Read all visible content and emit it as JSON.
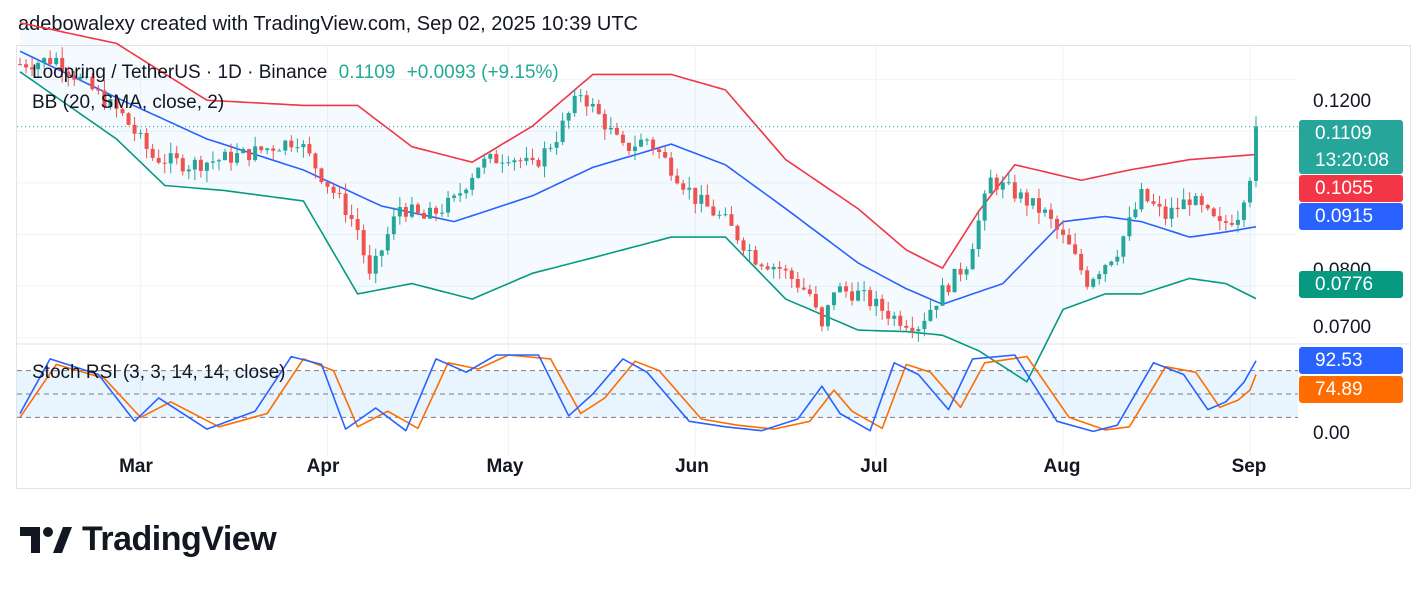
{
  "header": {
    "caption": "adebowalexy created with TradingView.com, Sep 02, 2025 10:39 UTC"
  },
  "legend": {
    "symbol": "Loopring / TetherUS · 1D · Binance",
    "last": "0.1109",
    "change": "+0.0093 (+9.15%)",
    "bb": "BB (20, SMA, close, 2)",
    "stoch": "Stoch RSI (3, 3, 14, 14, close)"
  },
  "price_axis": {
    "ticks": [
      "0.1200",
      "0.0800",
      "0.0700"
    ],
    "badges": {
      "last": "0.1109",
      "countdown": "13:20:08",
      "upper": "0.1055",
      "basis": "0.0915",
      "lower": "0.0776"
    }
  },
  "stoch_axis": {
    "ticks": [
      "0.00"
    ],
    "badges": {
      "k": "92.53",
      "d": "74.89"
    }
  },
  "time_axis": {
    "months": [
      "Mar",
      "Apr",
      "May",
      "Jun",
      "Jul",
      "Aug",
      "Sep"
    ]
  },
  "colors": {
    "up": "#26a69a",
    "down": "#ef5350",
    "bb_upper": "#f23645",
    "bb_basis": "#2962ff",
    "bb_lower": "#089981",
    "stoch_k": "#2962ff",
    "stoch_d": "#ff6d00",
    "band_fill": "#2196f3"
  },
  "brand": {
    "name": "TradingView",
    "logo_icon": "tradingview-logo-icon"
  },
  "chart_data": {
    "type": "candlestick",
    "title": "Loopring / TetherUS · 1D · Binance",
    "x_range": [
      "2025-02-09",
      "2025-09-02"
    ],
    "y_range": [
      0.069,
      0.1265
    ],
    "keypoints": {
      "close": [
        [
          "2025-02-09",
          0.123
        ],
        [
          "2025-02-15",
          0.124
        ],
        [
          "2025-02-21",
          0.118
        ],
        [
          "2025-02-26",
          0.113
        ],
        [
          "2025-03-03",
          0.105
        ],
        [
          "2025-03-09",
          0.1035
        ],
        [
          "2025-03-14",
          0.1045
        ],
        [
          "2025-03-20",
          0.106
        ],
        [
          "2025-03-27",
          0.1085
        ],
        [
          "2025-03-31",
          0.1015
        ],
        [
          "2025-04-04",
          0.095
        ],
        [
          "2025-04-06",
          0.091
        ],
        [
          "2025-04-08",
          0.0815
        ],
        [
          "2025-04-13",
          0.0955
        ],
        [
          "2025-04-17",
          0.093
        ],
        [
          "2025-04-22",
          0.0965
        ],
        [
          "2025-04-26",
          0.1035
        ],
        [
          "2025-05-01",
          0.1055
        ],
        [
          "2025-05-05",
          0.103
        ],
        [
          "2025-05-09",
          0.109
        ],
        [
          "2025-05-13",
          0.1175
        ],
        [
          "2025-05-17",
          0.1115
        ],
        [
          "2025-05-20",
          0.1065
        ],
        [
          "2025-05-24",
          0.1085
        ],
        [
          "2025-05-28",
          0.103
        ],
        [
          "2025-06-01",
          0.097
        ],
        [
          "2025-06-06",
          0.0925
        ],
        [
          "2025-06-11",
          0.0855
        ],
        [
          "2025-06-15",
          0.0835
        ],
        [
          "2025-06-20",
          0.0785
        ],
        [
          "2025-06-22",
          0.0715
        ],
        [
          "2025-06-24",
          0.0795
        ],
        [
          "2025-06-28",
          0.0785
        ],
        [
          "2025-07-04",
          0.074
        ],
        [
          "2025-07-08",
          0.0725
        ],
        [
          "2025-07-12",
          0.079
        ],
        [
          "2025-07-16",
          0.0845
        ],
        [
          "2025-07-20",
          0.1005
        ],
        [
          "2025-07-24",
          0.098
        ],
        [
          "2025-07-29",
          0.094
        ],
        [
          "2025-08-02",
          0.0875
        ],
        [
          "2025-08-05",
          0.081
        ],
        [
          "2025-08-10",
          0.087
        ],
        [
          "2025-08-14",
          0.0975
        ],
        [
          "2025-08-18",
          0.0935
        ],
        [
          "2025-08-22",
          0.097
        ],
        [
          "2025-08-27",
          0.0915
        ],
        [
          "2025-08-30",
          0.094
        ],
        [
          "2025-09-01",
          0.1016
        ],
        [
          "2025-09-02",
          0.1109
        ]
      ],
      "bb_upper": [
        [
          "2025-02-09",
          0.131
        ],
        [
          "2025-02-25",
          0.127
        ],
        [
          "2025-03-12",
          0.116
        ],
        [
          "2025-03-28",
          0.115
        ],
        [
          "2025-04-06",
          0.115
        ],
        [
          "2025-04-15",
          0.107
        ],
        [
          "2025-04-25",
          0.104
        ],
        [
          "2025-05-05",
          0.111
        ],
        [
          "2025-05-15",
          0.121
        ],
        [
          "2025-05-28",
          0.121
        ],
        [
          "2025-06-06",
          0.118
        ],
        [
          "2025-06-16",
          0.1045
        ],
        [
          "2025-06-28",
          0.095
        ],
        [
          "2025-07-06",
          0.087
        ],
        [
          "2025-07-12",
          0.0835
        ],
        [
          "2025-07-18",
          0.0945
        ],
        [
          "2025-07-24",
          0.1035
        ],
        [
          "2025-08-04",
          0.1005
        ],
        [
          "2025-08-12",
          0.1025
        ],
        [
          "2025-08-22",
          0.1045
        ],
        [
          "2025-09-02",
          0.1055
        ]
      ],
      "bb_basis": [
        [
          "2025-02-09",
          0.1255
        ],
        [
          "2025-02-25",
          0.1165
        ],
        [
          "2025-03-12",
          0.1085
        ],
        [
          "2025-03-28",
          0.1025
        ],
        [
          "2025-04-10",
          0.0955
        ],
        [
          "2025-04-22",
          0.0925
        ],
        [
          "2025-05-05",
          0.0975
        ],
        [
          "2025-05-15",
          0.103
        ],
        [
          "2025-05-28",
          0.1075
        ],
        [
          "2025-06-06",
          0.1035
        ],
        [
          "2025-06-16",
          0.095
        ],
        [
          "2025-06-28",
          0.0845
        ],
        [
          "2025-07-06",
          0.0795
        ],
        [
          "2025-07-12",
          0.0765
        ],
        [
          "2025-07-22",
          0.0805
        ],
        [
          "2025-08-01",
          0.0925
        ],
        [
          "2025-08-08",
          0.0935
        ],
        [
          "2025-08-14",
          0.0925
        ],
        [
          "2025-08-22",
          0.0895
        ],
        [
          "2025-08-28",
          0.0905
        ],
        [
          "2025-09-02",
          0.0915
        ]
      ],
      "bb_lower": [
        [
          "2025-02-09",
          0.1215
        ],
        [
          "2025-02-25",
          0.1085
        ],
        [
          "2025-03-05",
          0.0995
        ],
        [
          "2025-03-15",
          0.0985
        ],
        [
          "2025-03-28",
          0.0965
        ],
        [
          "2025-04-06",
          0.0785
        ],
        [
          "2025-04-15",
          0.0805
        ],
        [
          "2025-04-25",
          0.0775
        ],
        [
          "2025-05-05",
          0.0825
        ],
        [
          "2025-05-15",
          0.0855
        ],
        [
          "2025-05-28",
          0.0895
        ],
        [
          "2025-06-06",
          0.0895
        ],
        [
          "2025-06-16",
          0.0775
        ],
        [
          "2025-06-28",
          0.0715
        ],
        [
          "2025-07-06",
          0.0712
        ],
        [
          "2025-07-12",
          0.0705
        ],
        [
          "2025-07-18",
          0.0675
        ],
        [
          "2025-07-26",
          0.0615
        ],
        [
          "2025-08-01",
          0.0755
        ],
        [
          "2025-08-08",
          0.0785
        ],
        [
          "2025-08-14",
          0.0785
        ],
        [
          "2025-08-22",
          0.0815
        ],
        [
          "2025-08-28",
          0.0805
        ],
        [
          "2025-09-02",
          0.0776
        ]
      ],
      "stoch_k": [
        [
          "2025-02-09",
          25
        ],
        [
          "2025-02-14",
          95
        ],
        [
          "2025-02-22",
          75
        ],
        [
          "2025-02-28",
          15
        ],
        [
          "2025-03-04",
          45
        ],
        [
          "2025-03-12",
          5
        ],
        [
          "2025-03-20",
          28
        ],
        [
          "2025-03-26",
          98
        ],
        [
          "2025-03-31",
          88
        ],
        [
          "2025-04-04",
          5
        ],
        [
          "2025-04-09",
          32
        ],
        [
          "2025-04-14",
          3
        ],
        [
          "2025-04-19",
          95
        ],
        [
          "2025-04-24",
          78
        ],
        [
          "2025-04-29",
          100
        ],
        [
          "2025-05-06",
          100
        ],
        [
          "2025-05-11",
          22
        ],
        [
          "2025-05-15",
          50
        ],
        [
          "2025-05-20",
          95
        ],
        [
          "2025-05-24",
          78
        ],
        [
          "2025-05-31",
          15
        ],
        [
          "2025-06-06",
          8
        ],
        [
          "2025-06-12",
          3
        ],
        [
          "2025-06-18",
          18
        ],
        [
          "2025-06-22",
          60
        ],
        [
          "2025-06-25",
          25
        ],
        [
          "2025-06-30",
          3
        ],
        [
          "2025-07-04",
          90
        ],
        [
          "2025-07-08",
          75
        ],
        [
          "2025-07-13",
          30
        ],
        [
          "2025-07-17",
          95
        ],
        [
          "2025-07-24",
          100
        ],
        [
          "2025-07-31",
          15
        ],
        [
          "2025-08-06",
          2
        ],
        [
          "2025-08-10",
          10
        ],
        [
          "2025-08-16",
          90
        ],
        [
          "2025-08-21",
          75
        ],
        [
          "2025-08-25",
          30
        ],
        [
          "2025-08-28",
          40
        ],
        [
          "2025-08-31",
          65
        ],
        [
          "2025-09-02",
          92.53
        ]
      ],
      "stoch_d": [
        [
          "2025-02-09",
          20
        ],
        [
          "2025-02-15",
          88
        ],
        [
          "2025-02-23",
          70
        ],
        [
          "2025-03-01",
          20
        ],
        [
          "2025-03-06",
          40
        ],
        [
          "2025-03-14",
          8
        ],
        [
          "2025-03-22",
          25
        ],
        [
          "2025-03-28",
          95
        ],
        [
          "2025-04-02",
          80
        ],
        [
          "2025-04-06",
          8
        ],
        [
          "2025-04-11",
          28
        ],
        [
          "2025-04-16",
          6
        ],
        [
          "2025-04-21",
          90
        ],
        [
          "2025-04-26",
          82
        ],
        [
          "2025-05-01",
          100
        ],
        [
          "2025-05-08",
          95
        ],
        [
          "2025-05-13",
          25
        ],
        [
          "2025-05-17",
          45
        ],
        [
          "2025-05-22",
          92
        ],
        [
          "2025-05-26",
          80
        ],
        [
          "2025-06-02",
          18
        ],
        [
          "2025-06-08",
          10
        ],
        [
          "2025-06-14",
          5
        ],
        [
          "2025-06-20",
          15
        ],
        [
          "2025-06-24",
          55
        ],
        [
          "2025-06-27",
          28
        ],
        [
          "2025-07-02",
          6
        ],
        [
          "2025-07-06",
          88
        ],
        [
          "2025-07-10",
          78
        ],
        [
          "2025-07-15",
          33
        ],
        [
          "2025-07-19",
          90
        ],
        [
          "2025-07-26",
          98
        ],
        [
          "2025-08-02",
          20
        ],
        [
          "2025-08-08",
          4
        ],
        [
          "2025-08-12",
          8
        ],
        [
          "2025-08-18",
          85
        ],
        [
          "2025-08-23",
          78
        ],
        [
          "2025-08-27",
          33
        ],
        [
          "2025-08-30",
          42
        ],
        [
          "2025-09-01",
          55
        ],
        [
          "2025-09-02",
          74.89
        ]
      ]
    }
  }
}
